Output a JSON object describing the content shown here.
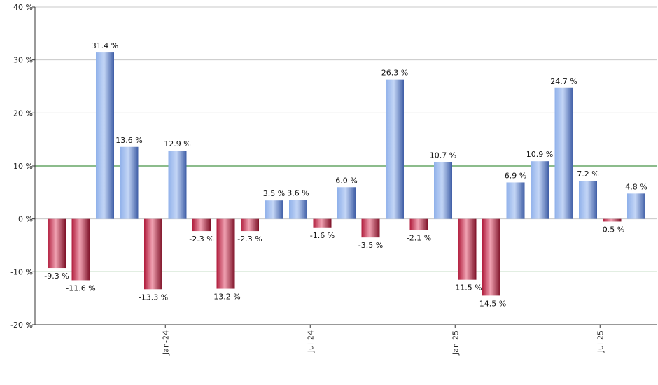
{
  "chart_data": {
    "type": "bar",
    "title": "",
    "xlabel": "",
    "ylabel": "",
    "ylim": [
      -20,
      40
    ],
    "y_ticks": [
      -20,
      -10,
      0,
      10,
      20,
      30,
      40
    ],
    "y_tick_labels": [
      "-20 %",
      "-10 %",
      "0 %",
      "10 %",
      "20 %",
      "30 %",
      "40 %"
    ],
    "x_tick_labels": [
      {
        "label": "Jan-24",
        "category_index": 4
      },
      {
        "label": "Jul-24",
        "category_index": 10
      },
      {
        "label": "Jan-25",
        "category_index": 16
      },
      {
        "label": "Jul-25",
        "category_index": 22
      }
    ],
    "reference_lines": [
      10,
      -10
    ],
    "grid": true,
    "values": [
      -9.3,
      -11.6,
      31.4,
      13.6,
      -13.3,
      12.9,
      -2.3,
      -13.2,
      -2.3,
      3.5,
      3.6,
      -1.6,
      6.0,
      -3.5,
      26.3,
      -2.1,
      10.7,
      -11.5,
      -14.5,
      6.9,
      10.9,
      24.7,
      7.2,
      -0.5,
      4.8
    ],
    "data_labels": [
      "-9.3 %",
      "-11.6 %",
      "31.4 %",
      "13.6 %",
      "-13.3 %",
      "12.9 %",
      "-2.3 %",
      "-13.2 %",
      "-2.3 %",
      "3.5 %",
      "3.6 %",
      "-1.6 %",
      "6.0 %",
      "-3.5 %",
      "26.3 %",
      "-2.1 %",
      "10.7 %",
      "-11.5 %",
      "-14.5 %",
      "6.9 %",
      "10.9 %",
      "24.7 %",
      "7.2 %",
      "-0.5 %",
      "4.8 %"
    ],
    "colors": {
      "positive": "#6f93d8",
      "positive_light": "#b9cdf3",
      "positive_dark": "#3f5ea6",
      "negative": "#c8314f",
      "negative_light": "#f2a0b0",
      "negative_dark": "#7d1026",
      "grid": "#c8c8c8",
      "reference": "#1a7a1a",
      "axis": "#333333"
    }
  }
}
